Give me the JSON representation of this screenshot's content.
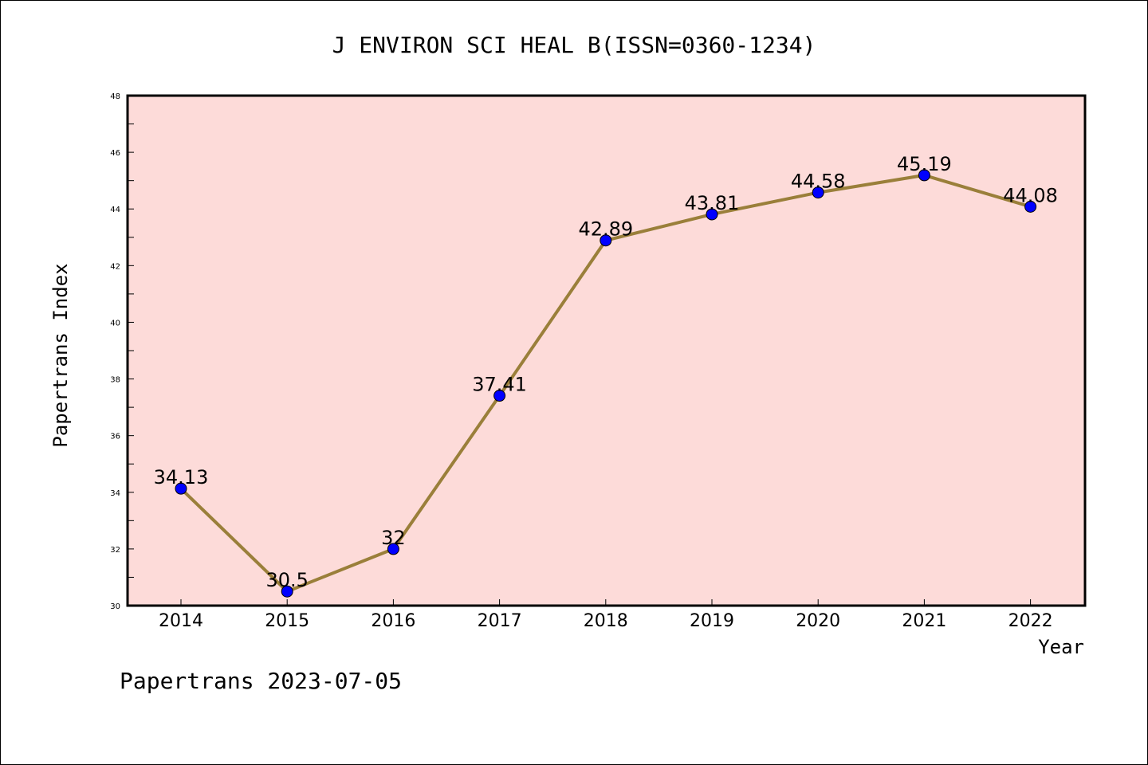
{
  "chart_data": {
    "type": "line",
    "title": "J ENVIRON SCI HEAL B(ISSN=0360-1234)",
    "xlabel": "Year",
    "ylabel": "Papertrans Index",
    "footer": "Papertrans 2023-07-05",
    "x": [
      "2014",
      "2015",
      "2016",
      "2017",
      "2018",
      "2019",
      "2020",
      "2021",
      "2022"
    ],
    "values": [
      34.13,
      30.5,
      32,
      37.41,
      42.89,
      43.81,
      44.58,
      45.19,
      44.08
    ],
    "labels": [
      "34.13",
      "30.5",
      "32",
      "37.41",
      "42.89",
      "43.81",
      "44.58",
      "45.19",
      "44.08"
    ],
    "ylim": [
      30,
      48
    ],
    "yticks": [
      "30",
      "32",
      "34",
      "36",
      "38",
      "40",
      "42",
      "44",
      "46",
      "48"
    ],
    "grid": false,
    "colors": {
      "plot_background": "#fddbd9",
      "line": "#9a7f3a",
      "marker": "#0000ff"
    }
  }
}
